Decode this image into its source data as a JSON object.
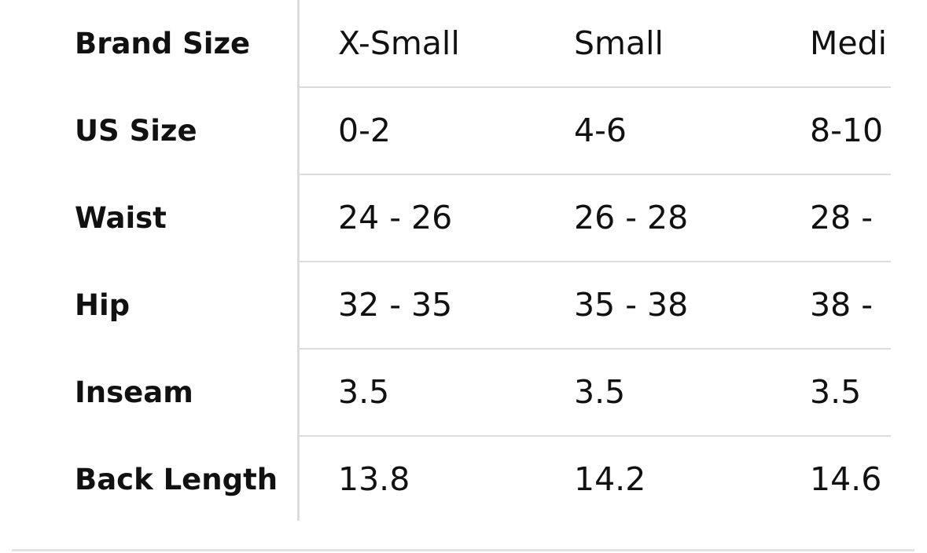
{
  "table": {
    "rows": [
      {
        "label": "Brand Size",
        "cells": [
          "X-Small",
          "Small",
          "Medi"
        ]
      },
      {
        "label": "US Size",
        "cells": [
          "0-2",
          "4-6",
          "8-10"
        ]
      },
      {
        "label": "Waist",
        "cells": [
          "24 - 26",
          "26 - 28",
          "28 -"
        ]
      },
      {
        "label": "Hip",
        "cells": [
          "32 - 35",
          "35 - 38",
          "38 -"
        ]
      },
      {
        "label": "Inseam",
        "cells": [
          "3.5",
          "3.5",
          "3.5"
        ]
      },
      {
        "label": "Back Length",
        "cells": [
          "13.8",
          "14.2",
          "14.6"
        ]
      }
    ]
  }
}
